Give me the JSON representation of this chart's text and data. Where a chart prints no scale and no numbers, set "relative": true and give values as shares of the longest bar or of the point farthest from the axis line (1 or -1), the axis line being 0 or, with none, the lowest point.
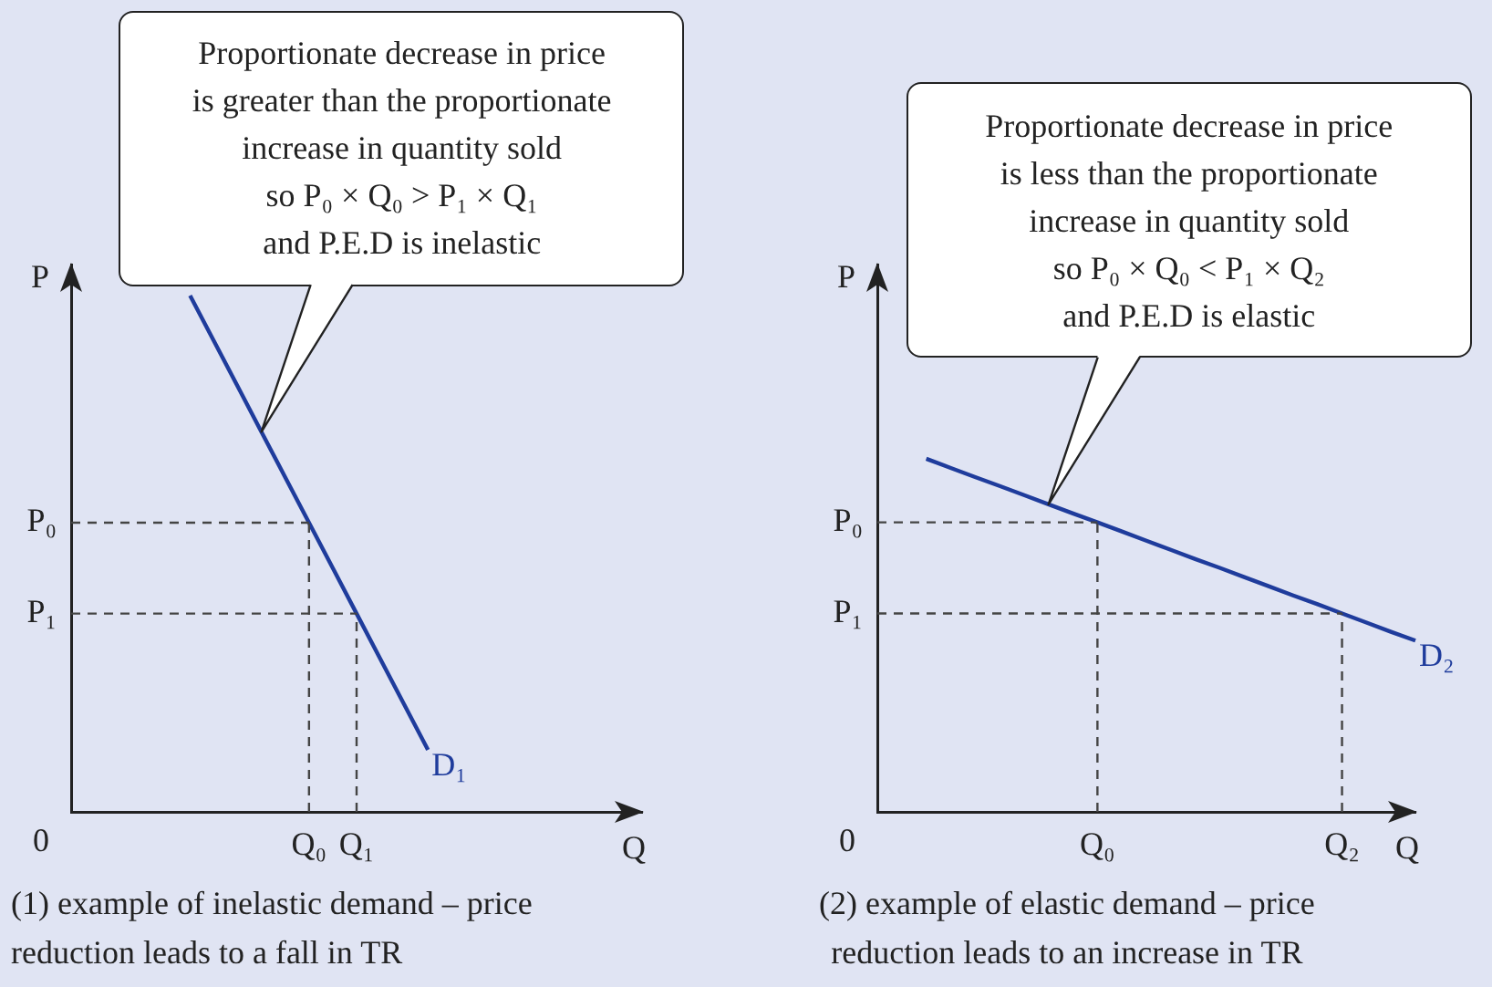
{
  "chart_data": [
    {
      "type": "line",
      "relative": true,
      "xlabel": "Q",
      "ylabel": "P",
      "marker": "none",
      "categories": [
        null,
        null,
        null,
        null,
        null,
        null,
        null,
        null,
        null,
        null,
        "Q₀",
        null,
        "Q₁",
        null,
        null,
        null,
        null,
        null,
        null,
        null,
        null,
        null,
        null,
        null,
        null
      ],
      "series": [
        {
          "name": "D₁",
          "color": "#1f3c9c",
          "values": [
            null,
            null,
            null,
            null,
            null,
            1,
            0.912,
            0.824,
            0.736,
            0.648,
            0.56,
            0.472,
            0.384,
            0.296,
            0.208,
            0.12,
            null,
            null,
            null,
            null,
            null,
            null,
            null,
            null,
            null
          ]
        }
      ],
      "ref_lines": [
        {
          "axis": "y",
          "value": 0.56,
          "label": "P₀",
          "color": "#444444",
          "line_style": "dashed"
        },
        {
          "axis": "y",
          "value": 0.384,
          "label": "P₁",
          "color": "#444444",
          "line_style": "dashed"
        },
        {
          "axis": "x",
          "value": "Q₀",
          "color": "#444444",
          "line_style": "dashed"
        },
        {
          "axis": "x",
          "value": "Q₁",
          "color": "#444444",
          "line_style": "dashed"
        }
      ],
      "annotations": [
        "0",
        "Proportionate decrease in price\nis greater than the proportionate\nincrease in quantity sold\nso P₀ × Q₀ > P₁ × Q₁\nand P.E.D is inelastic",
        "(1) example of inelastic demand – price\nreduction leads to a fall in TR"
      ]
    },
    {
      "type": "line",
      "relative": true,
      "xlabel": "Q",
      "ylabel": "P",
      "marker": "none",
      "categories": [
        null,
        null,
        null,
        null,
        null,
        null,
        null,
        null,
        null,
        "Q₀",
        null,
        null,
        null,
        null,
        null,
        null,
        null,
        null,
        null,
        "Q₂",
        null,
        null,
        null
      ],
      "series": [
        {
          "name": "D₂",
          "color": "#1f3c9c",
          "values": [
            null,
            null,
            1,
            0.974,
            0.948,
            0.923,
            0.897,
            0.871,
            0.845,
            0.82,
            0.794,
            0.768,
            0.742,
            0.716,
            0.691,
            0.665,
            0.639,
            0.613,
            0.588,
            0.562,
            0.536,
            0.51,
            0.485
          ]
        }
      ],
      "ref_lines": [
        {
          "axis": "y",
          "value": 0.82,
          "label": "P₀",
          "color": "#444444",
          "line_style": "dashed"
        },
        {
          "axis": "y",
          "value": 0.562,
          "label": "P₁",
          "color": "#444444",
          "line_style": "dashed"
        },
        {
          "axis": "x",
          "value": "Q₀",
          "color": "#444444",
          "line_style": "dashed"
        },
        {
          "axis": "x",
          "value": "Q₂",
          "color": "#444444",
          "line_style": "dashed"
        }
      ],
      "annotations": [
        "0",
        "Proportionate decrease in price\nis less than the proportionate\nincrease in quantity sold\nso P₀ × Q₀ < P₁ × Q₂\nand P.E.D is elastic",
        "(2) example of elastic demand – price\nreduction leads to an increase in TR"
      ]
    }
  ]
}
